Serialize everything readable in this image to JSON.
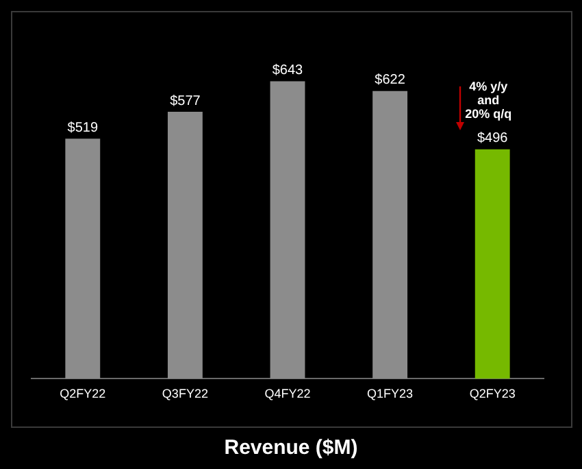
{
  "chart_data": {
    "type": "bar",
    "title": "Revenue ($M)",
    "categories": [
      "Q2FY22",
      "Q3FY22",
      "Q4FY22",
      "Q1FY23",
      "Q2FY23"
    ],
    "values": [
      519,
      577,
      643,
      622,
      496
    ],
    "colors": [
      "#8c8c8c",
      "#8c8c8c",
      "#8c8c8c",
      "#8c8c8c",
      "#76b900"
    ],
    "value_labels": [
      "$519",
      "$577",
      "$643",
      "$622",
      "$496"
    ],
    "tick_labels": "x",
    "grid": false,
    "legend": false,
    "annotations": [
      "4% y/y\nand\n20% q/q"
    ]
  }
}
